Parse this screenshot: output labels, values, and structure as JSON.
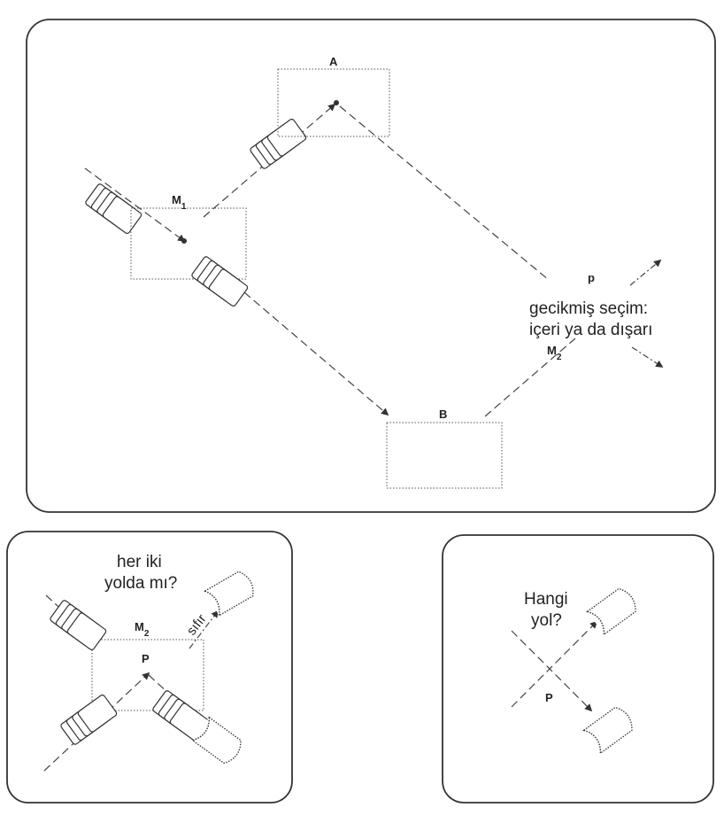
{
  "top_panel": {
    "box_a_label": "A",
    "box_b_label": "B",
    "m1_label": "M",
    "m1_sub": "1",
    "m2_label": "M",
    "m2_sub": "2",
    "p_label": "p",
    "caption_line1": "gecikmiş seçim:",
    "caption_line2": "içeri ya da dışarı"
  },
  "bottom_left": {
    "question_line1": "her iki",
    "question_line2": "yolda mı?",
    "m2_label": "M",
    "m2_sub": "2",
    "p_label": "P",
    "zero_label": "sıfır"
  },
  "bottom_right": {
    "question_line1": "Hangi",
    "question_line2": "yol?",
    "p_label": "P"
  }
}
